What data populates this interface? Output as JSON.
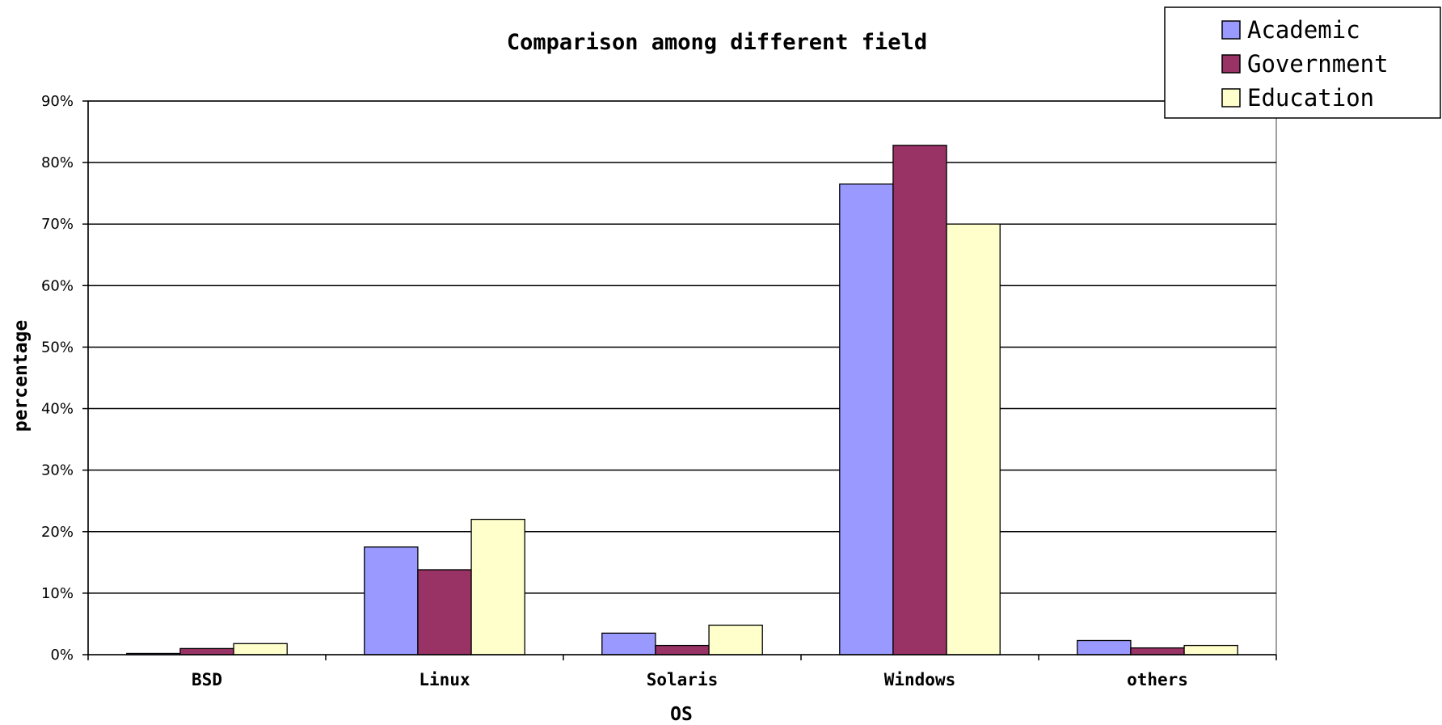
{
  "chart_data": {
    "type": "bar",
    "title": "Comparison among different field",
    "xlabel": "OS",
    "ylabel": "percentage",
    "categories": [
      "BSD",
      "Linux",
      "Solaris",
      "Windows",
      "others"
    ],
    "series": [
      {
        "name": "Academic",
        "color": "#9999ff",
        "values": [
          0.2,
          17.5,
          3.5,
          76.5,
          2.3
        ]
      },
      {
        "name": "Government",
        "color": "#993366",
        "values": [
          1.0,
          13.8,
          1.5,
          82.8,
          1.1
        ]
      },
      {
        "name": "Education",
        "color": "#ffffcc",
        "values": [
          1.8,
          22.0,
          4.8,
          70.0,
          1.5
        ]
      }
    ],
    "ylim": [
      0,
      90
    ],
    "yticks": [
      "0%",
      "10%",
      "20%",
      "30%",
      "40%",
      "50%",
      "60%",
      "70%",
      "80%",
      "90%"
    ],
    "grid": true,
    "legend_position": "top-right"
  }
}
